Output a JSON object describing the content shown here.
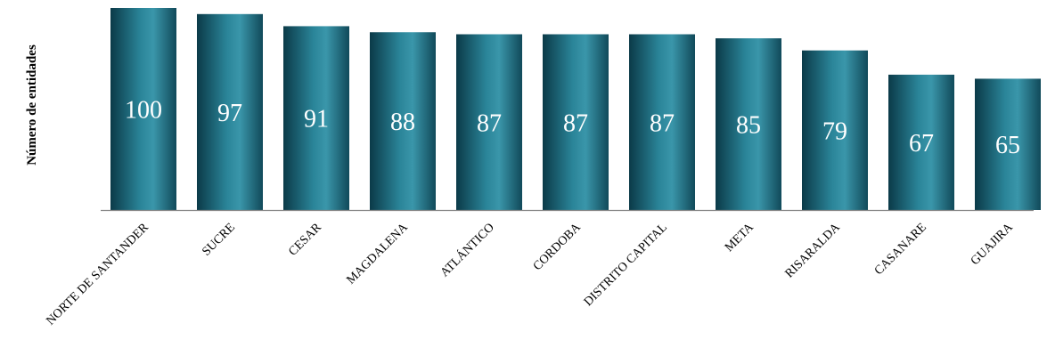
{
  "chart_data": {
    "type": "bar",
    "title": "",
    "xlabel": "",
    "ylabel": "Número de entidades",
    "categories": [
      "NORTE DE SANTANDER",
      "SUCRE",
      "CESAR",
      "MAGDALENA",
      "ATLÁNTICO",
      "CORDOBA",
      "DISTRITO CAPITAL",
      "META",
      "RISARALDA",
      "CASANARE",
      "GUAJIRA"
    ],
    "values": [
      100,
      97,
      91,
      88,
      87,
      87,
      87,
      85,
      79,
      67,
      65
    ],
    "ylim": [
      0,
      100
    ],
    "grid": false,
    "legend": "none",
    "data_labels": true,
    "colors": {
      "bar_dark": "#0b3a48",
      "bar_mid": "#1d6f82",
      "bar_light": "#3a96aa",
      "value_label": "#ffffff",
      "axis": "#888888"
    }
  }
}
